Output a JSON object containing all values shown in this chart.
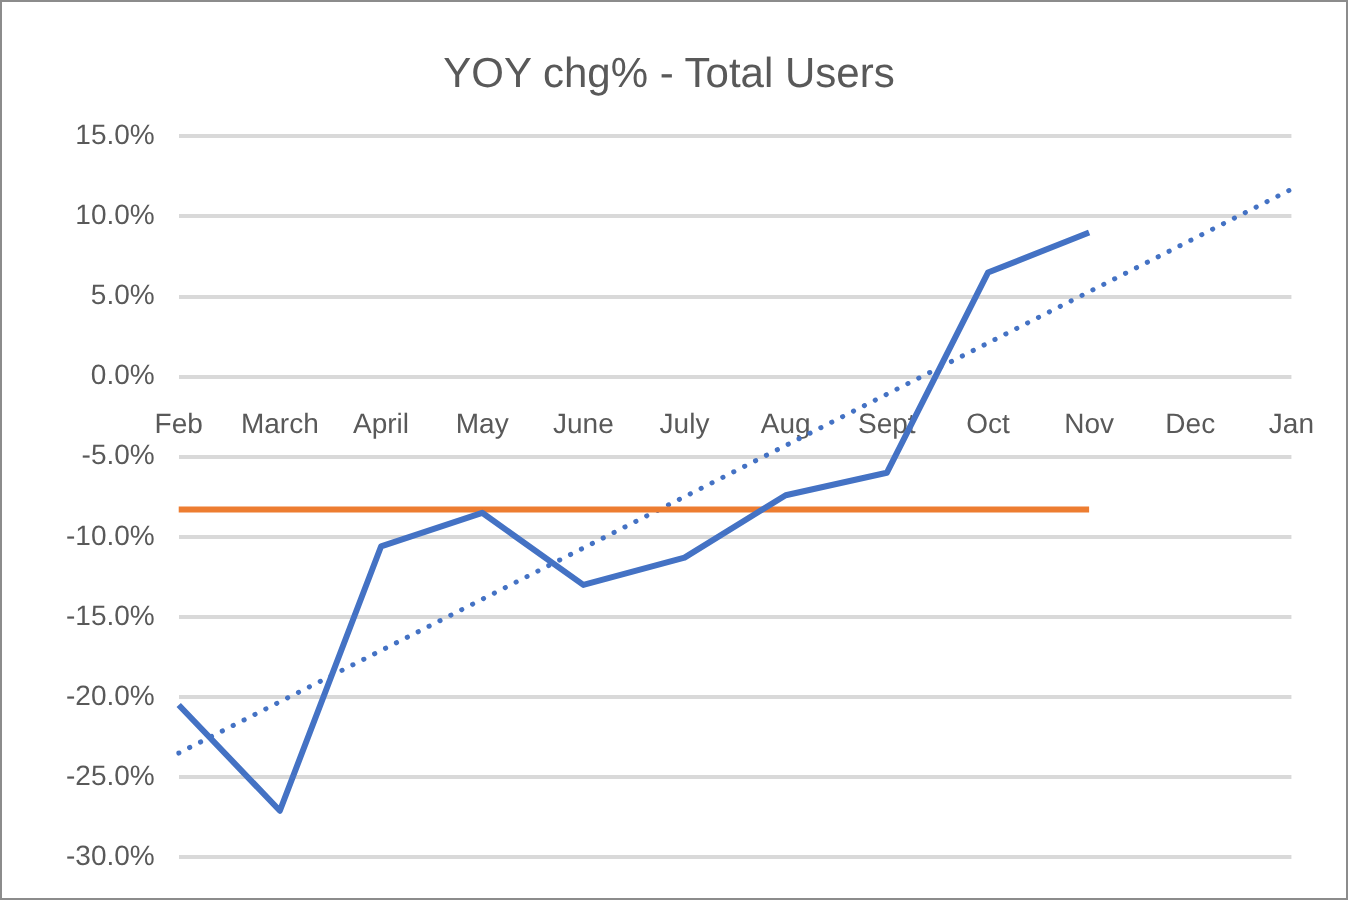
{
  "chart_data": {
    "type": "line",
    "title": "YOY chg% - Total Users",
    "categories": [
      "Feb",
      "March",
      "April",
      "May",
      "June",
      "July",
      "Aug",
      "Sept",
      "Oct",
      "Nov",
      "Dec",
      "Jan"
    ],
    "series": [
      {
        "color": "#4472c4",
        "values": [
          -20.5,
          -27.1,
          -10.6,
          -8.5,
          -13.0,
          -11.3,
          -7.4,
          -6.0,
          6.5,
          9.0,
          null,
          null
        ]
      },
      {
        "color": "#ed7d31",
        "x": [
          "Feb",
          "Nov"
        ],
        "values": [
          -8.3,
          -8.3
        ]
      },
      {
        "color": "#4472c4",
        "x": [
          "Feb",
          "Jan"
        ],
        "values": [
          -23.5,
          11.7
        ],
        "line_style": "dotted"
      }
    ],
    "ylim": [
      -30,
      15
    ],
    "yticks": [
      {
        "value": -30,
        "label": "-30.0%"
      },
      {
        "value": -25,
        "label": "-25.0%"
      },
      {
        "value": -20,
        "label": "-20.0%"
      },
      {
        "value": -15,
        "label": "-15.0%"
      },
      {
        "value": -10,
        "label": "-10.0%"
      },
      {
        "value": -5,
        "label": "-5.0%"
      },
      {
        "value": 0,
        "label": "0.0%"
      },
      {
        "value": 5,
        "label": "5.0%"
      },
      {
        "value": 10,
        "label": "10.0%"
      },
      {
        "value": 15,
        "label": "15.0%"
      }
    ],
    "grid": "y",
    "legend": false,
    "marker": "none"
  }
}
